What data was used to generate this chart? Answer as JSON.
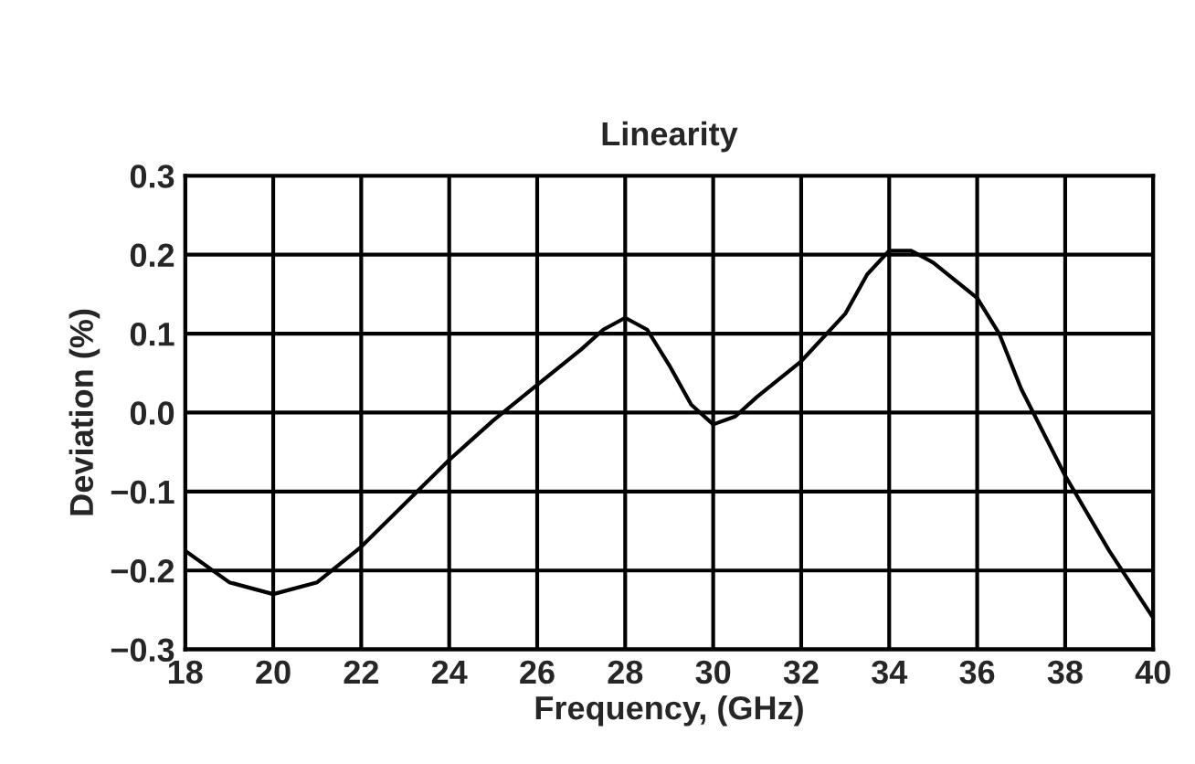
{
  "chart_data": {
    "type": "line",
    "title": "Linearity",
    "xlabel": "Frequency, (GHz)",
    "ylabel": "Deviation (%)",
    "x": [
      18,
      19,
      20,
      21,
      22,
      23,
      24,
      25,
      26,
      27,
      27.5,
      28,
      28.5,
      29,
      29.5,
      30,
      30.5,
      31,
      32,
      33,
      33.5,
      34,
      34.5,
      35,
      36,
      36.5,
      37,
      38,
      39,
      40
    ],
    "series": [
      {
        "color": "#000000",
        "values": [
          -0.175,
          -0.215,
          -0.23,
          -0.215,
          -0.17,
          -0.115,
          -0.06,
          -0.01,
          0.035,
          0.08,
          0.105,
          0.12,
          0.105,
          0.06,
          0.01,
          -0.015,
          -0.005,
          0.02,
          0.065,
          0.125,
          0.175,
          0.205,
          0.205,
          0.19,
          0.145,
          0.1,
          0.03,
          -0.08,
          -0.175,
          -0.26
        ]
      }
    ],
    "xlim": [
      18,
      40
    ],
    "xticks": [
      18,
      20,
      22,
      24,
      26,
      28,
      30,
      32,
      34,
      36,
      38,
      40
    ],
    "ylim": [
      -0.3,
      0.3
    ],
    "yticks": [
      {
        "value": -0.3,
        "label": "−0.3"
      },
      {
        "value": -0.2,
        "label": "−0.2"
      },
      {
        "value": -0.1,
        "label": "−0.1"
      },
      {
        "value": 0,
        "label": "0.0"
      },
      0.1,
      0.2,
      0.3
    ],
    "grid": true,
    "marker": "none",
    "line_style": "solid"
  }
}
